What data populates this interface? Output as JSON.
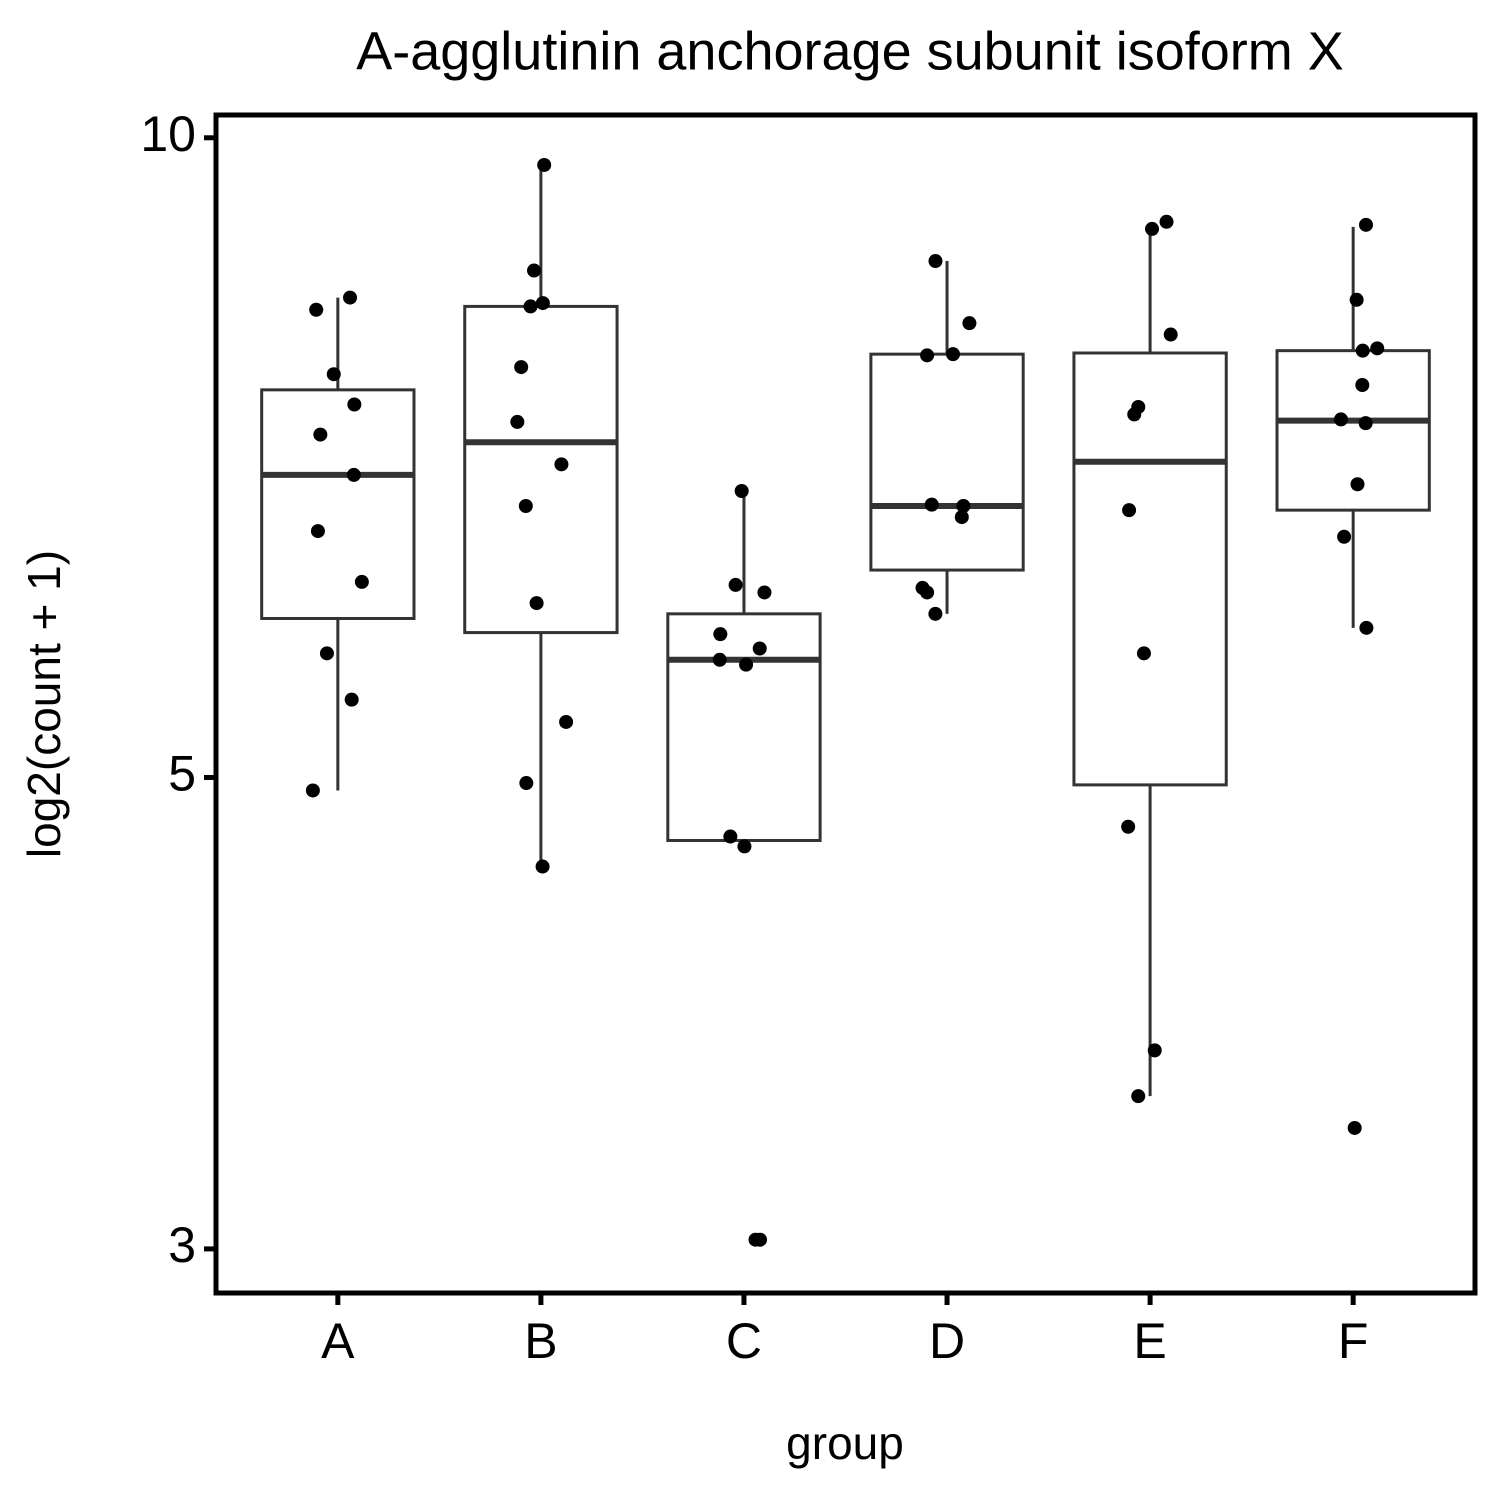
{
  "chart_data": {
    "type": "box",
    "title": "A-agglutinin anchorage subunit isoform X",
    "x_label": "group",
    "y_label": "log2(count + 1)",
    "categories": [
      "A",
      "B",
      "C",
      "D",
      "E",
      "F"
    ],
    "boxes": [
      {
        "whisker_low": 4.93,
        "q1": 5.94,
        "median": 6.94,
        "q3": 7.61,
        "whisker_high": 8.41
      },
      {
        "whisker_low": 4.54,
        "q1": 5.85,
        "median": 7.19,
        "q3": 8.33,
        "whisker_high": 9.71
      },
      {
        "whisker_low": 4.64,
        "q1": 4.67,
        "median": 5.68,
        "q3": 5.97,
        "whisker_high": 6.82
      },
      {
        "whisker_low": 5.97,
        "q1": 6.26,
        "median": 6.71,
        "q3": 7.91,
        "whisker_high": 8.75
      },
      {
        "whisker_low": 3.54,
        "q1": 4.96,
        "median": 7.04,
        "q3": 7.92,
        "whisker_high": 9.07
      },
      {
        "whisker_low": 5.88,
        "q1": 6.68,
        "median": 7.36,
        "q3": 7.94,
        "whisker_high": 9.08
      }
    ],
    "points": [
      [
        8.41,
        8.3,
        7.74,
        7.49,
        7.25,
        6.94,
        6.53,
        6.18,
        5.72,
        5.44,
        4.93
      ],
      [
        9.71,
        8.66,
        8.33,
        8.36,
        7.8,
        7.35,
        7.02,
        6.71,
        6.04,
        5.31,
        4.97,
        4.54
      ],
      [
        6.82,
        6.16,
        6.11,
        5.84,
        5.75,
        5.68,
        5.65,
        4.69,
        4.64,
        3.03,
        3.03
      ],
      [
        8.75,
        8.18,
        7.91,
        7.9,
        6.72,
        6.71,
        6.63,
        6.14,
        6.11,
        5.97
      ],
      [
        9.13,
        9.06,
        8.08,
        7.47,
        7.41,
        6.68,
        5.72,
        4.74,
        3.72,
        3.54
      ],
      [
        9.1,
        8.39,
        7.94,
        7.96,
        7.65,
        7.37,
        7.34,
        6.87,
        6.49,
        5.88,
        3.42
      ]
    ],
    "box_color": "#333333",
    "point_color": "#000000",
    "ylim": [
      2.86,
      10.25
    ],
    "yticks": [
      3,
      5,
      10
    ],
    "log": true
  }
}
